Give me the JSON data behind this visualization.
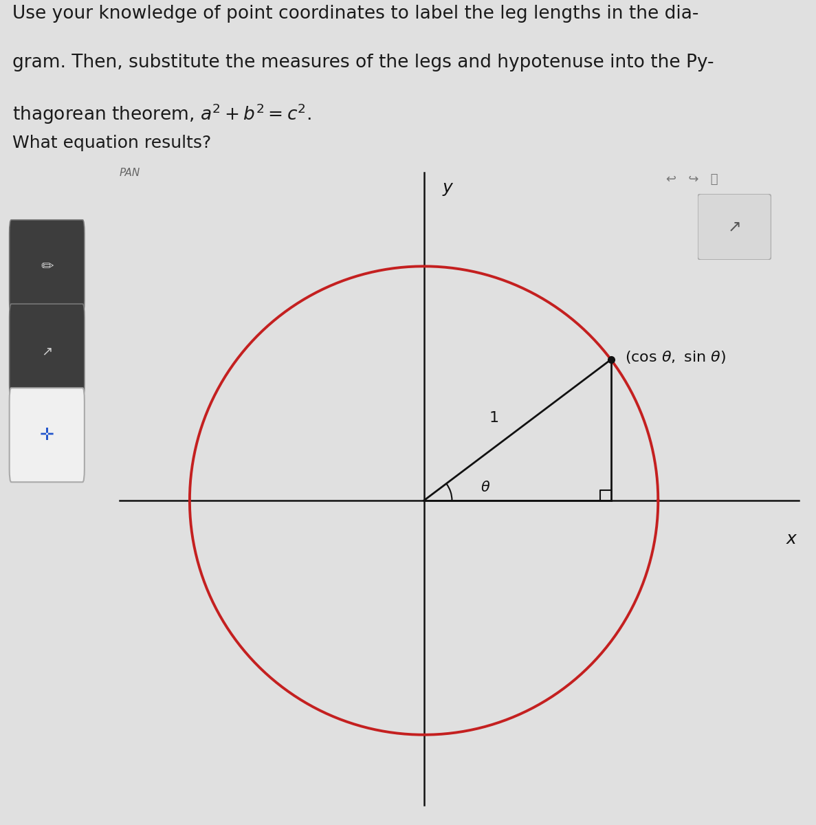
{
  "fig_width": 11.87,
  "fig_height": 12.0,
  "bg_color": "#e0e0e0",
  "panel_bg": "#d0d0d0",
  "header_line1": "Use your knowledge of point coordinates to label the leg lengths in the dia-",
  "header_line2": "gram. Then, substitute the measures of the legs and hypotenuse into the Py-",
  "header_line3": "thagorean theorem, $a^2 + b^2 = c^2$.",
  "question_text": "What equation results?",
  "circle_color": "#c42020",
  "circle_linewidth": 2.8,
  "axis_color": "#111111",
  "triangle_color": "#111111",
  "point_color": "#111111",
  "theta_deg": 37,
  "x_label": "x",
  "y_label": "y",
  "sidebar_color": "#333333",
  "pan_label": "PAN",
  "header_fontsize": 19,
  "question_fontsize": 18
}
